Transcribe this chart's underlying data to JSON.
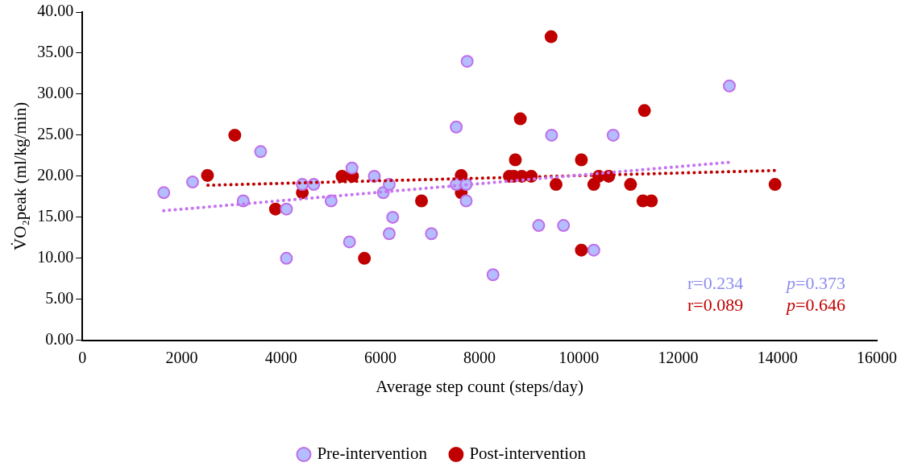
{
  "chart_data": {
    "type": "scatter",
    "xlabel": "Average step count (steps/day)",
    "ylabel": "V̇O₂peak (ml/kg/min)",
    "xlim": [
      0,
      16000
    ],
    "xticks": [
      0,
      2000,
      4000,
      6000,
      8000,
      10000,
      12000,
      14000,
      16000
    ],
    "ylim": [
      0,
      40
    ],
    "yticks": [
      {
        "value": 0,
        "label": "0.00"
      },
      {
        "value": 5,
        "label": "5.00"
      },
      {
        "value": 10,
        "label": "10.00"
      },
      {
        "value": 15,
        "label": "15.00"
      },
      {
        "value": 20,
        "label": "20.00"
      },
      {
        "value": 25,
        "label": "25.00"
      },
      {
        "value": 30,
        "label": "30.00"
      },
      {
        "value": 35,
        "label": "35.00"
      },
      {
        "value": 40,
        "label": "40.00"
      }
    ],
    "grid": false,
    "legend": "bottom",
    "marker": "circle",
    "series": [
      {
        "name": "Pre-intervention",
        "color": "#b4bdff",
        "x": [
          1640,
          2220,
          3240,
          3590,
          4110,
          4110,
          4430,
          4660,
          5010,
          5380,
          5430,
          5880,
          6060,
          6180,
          6180,
          6250,
          7030,
          7530,
          7530,
          7730,
          7750,
          7730,
          8270,
          9190,
          9450,
          9690,
          10300,
          10690,
          13030
        ],
        "values": [
          18,
          19.3,
          17,
          23,
          16,
          10,
          19,
          19,
          17,
          12,
          21,
          20,
          18,
          19,
          13,
          15,
          13,
          26,
          19,
          19,
          34,
          17,
          8,
          14,
          25,
          14,
          11,
          25,
          31
        ]
      },
      {
        "name": "Post-intervention",
        "color": "#c00000",
        "x": [
          2520,
          3070,
          3890,
          4430,
          5230,
          5440,
          5680,
          6830,
          7630,
          7630,
          8600,
          8690,
          8720,
          8820,
          8850,
          9040,
          9440,
          9540,
          10050,
          10050,
          10300,
          10400,
          10600,
          11040,
          11290,
          11320,
          11460,
          13950
        ],
        "values": [
          20.1,
          25,
          16,
          18,
          20,
          20,
          10,
          17,
          20.1,
          18,
          20,
          20,
          22,
          27,
          20,
          20,
          37,
          19,
          22,
          11,
          19,
          20,
          20,
          19,
          17,
          28,
          17,
          19
        ]
      },
      {
        "type": "line",
        "color": "#c573f0",
        "line_style": "dotted",
        "marker": "none",
        "x": [
          1640,
          13030
        ],
        "values": [
          15.8,
          21.7
        ]
      },
      {
        "type": "line",
        "color": "#c00000",
        "line_style": "dotted",
        "marker": "none",
        "x": [
          2530,
          13970
        ],
        "values": [
          18.9,
          20.7
        ]
      }
    ],
    "annotations": [
      "r=0.234",
      "p=0.373",
      "r=0.089",
      "p=0.646"
    ]
  }
}
